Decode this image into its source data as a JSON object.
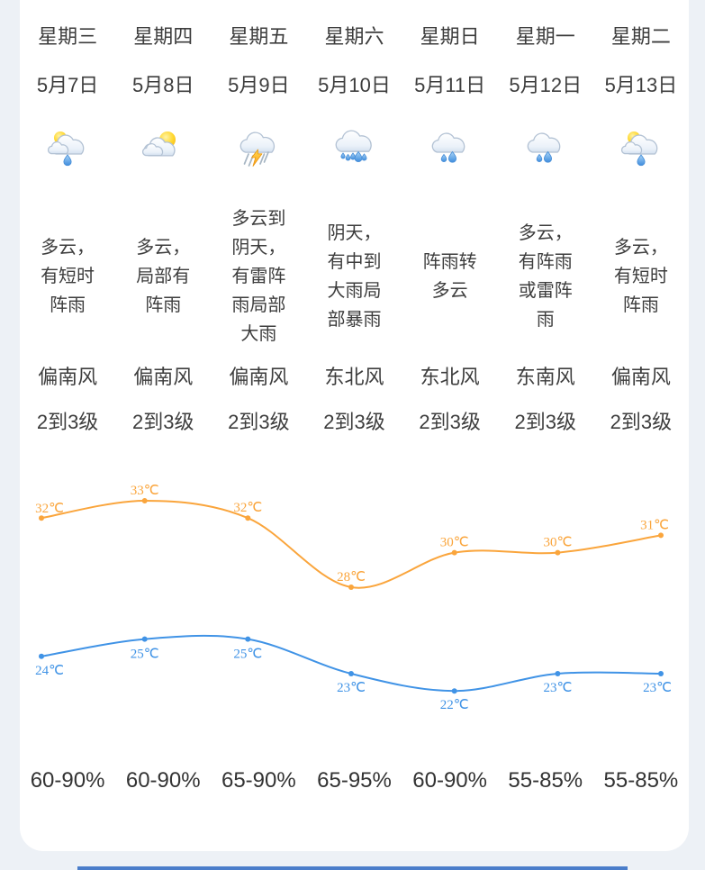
{
  "page": {
    "background_color": "#edf1f6",
    "card_color": "#ffffff",
    "text_color": "#3d3d3d",
    "accent_bar_color": "#4a7dca"
  },
  "days": [
    {
      "weekday": "星期三",
      "date": "5月7日",
      "icon": "sun-cloud-drop",
      "desc": "多云，\n有短时\n阵雨",
      "wind_dir": "偏南风",
      "wind_level": "2到3级",
      "humidity": "60-90%"
    },
    {
      "weekday": "星期四",
      "date": "5月8日",
      "icon": "sun-cloud",
      "desc": "多云，\n局部有\n阵雨",
      "wind_dir": "偏南风",
      "wind_level": "2到3级",
      "humidity": "60-90%"
    },
    {
      "weekday": "星期五",
      "date": "5月9日",
      "icon": "thunderstorm",
      "desc": "多云到\n阴天，\n有雷阵\n雨局部\n大雨",
      "wind_dir": "偏南风",
      "wind_level": "2到3级",
      "humidity": "65-90%"
    },
    {
      "weekday": "星期六",
      "date": "5月10日",
      "icon": "heavy-rain",
      "desc": "阴天，\n有中到\n大雨局\n部暴雨",
      "wind_dir": "东北风",
      "wind_level": "2到3级",
      "humidity": "65-95%"
    },
    {
      "weekday": "星期日",
      "date": "5月11日",
      "icon": "rain",
      "desc": "阵雨转\n多云",
      "wind_dir": "东北风",
      "wind_level": "2到3级",
      "humidity": "60-90%"
    },
    {
      "weekday": "星期一",
      "date": "5月12日",
      "icon": "rain",
      "desc": "多云，\n有阵雨\n或雷阵\n雨",
      "wind_dir": "东南风",
      "wind_level": "2到3级",
      "humidity": "55-85%"
    },
    {
      "weekday": "星期二",
      "date": "5月13日",
      "icon": "sun-cloud-drop",
      "desc": "多云，\n有短时\n阵雨",
      "wind_dir": "偏南风",
      "wind_level": "2到3级",
      "humidity": "55-85%"
    }
  ],
  "chart_data": {
    "type": "line",
    "categories": [
      "5月7日",
      "5月8日",
      "5月9日",
      "5月10日",
      "5月11日",
      "5月12日",
      "5月13日"
    ],
    "series": [
      {
        "name": "high",
        "color": "#faa53c",
        "unit": "℃",
        "values": [
          32,
          33,
          32,
          28,
          30,
          30,
          31
        ]
      },
      {
        "name": "low",
        "color": "#4093e6",
        "unit": "℃",
        "values": [
          24,
          25,
          25,
          23,
          22,
          23,
          23
        ]
      }
    ],
    "title": "",
    "xlabel": "",
    "ylabel": "",
    "ylim": [
      21,
      34
    ],
    "grid": false,
    "legend": "none",
    "point_labels": true
  }
}
